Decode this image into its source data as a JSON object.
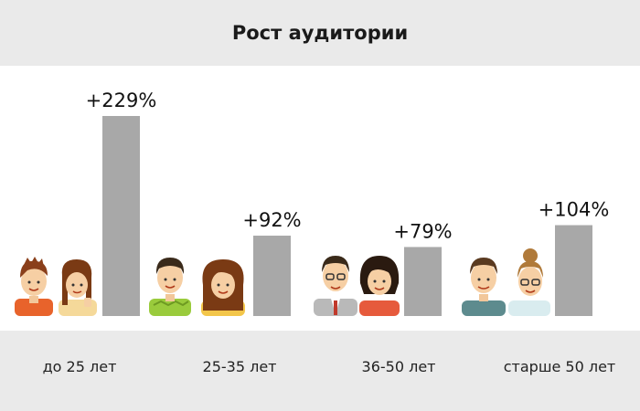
{
  "chart_data": {
    "type": "bar",
    "title": "Рост аудитории",
    "categories": [
      "до 25 лет",
      "25-35 лет",
      "36-50 лет",
      "старше 50 лет"
    ],
    "values": [
      229,
      92,
      79,
      104
    ],
    "value_labels": [
      "+229%",
      "+92%",
      "+79%",
      "+104%"
    ],
    "ylim": [
      0,
      229
    ],
    "grid": false,
    "bar_color": "#a8a8a8"
  },
  "colors": {
    "header_bg": "#eaeaea",
    "bar": "#a8a8a8"
  },
  "icons": [
    "young-people-icon",
    "adults-25-35-icon",
    "adults-36-50-icon",
    "seniors-icon"
  ]
}
